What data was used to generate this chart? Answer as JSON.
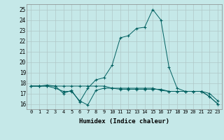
{
  "xlabel": "Humidex (Indice chaleur)",
  "background_color": "#c5e8e8",
  "grid_color": "#b0c8c8",
  "line_color": "#006060",
  "xlim": [
    -0.5,
    23.5
  ],
  "ylim": [
    15.5,
    25.5
  ],
  "xticks": [
    0,
    1,
    2,
    3,
    4,
    5,
    6,
    7,
    8,
    9,
    10,
    11,
    12,
    13,
    14,
    15,
    16,
    17,
    18,
    19,
    20,
    21,
    22,
    23
  ],
  "yticks": [
    16,
    17,
    18,
    19,
    20,
    21,
    22,
    23,
    24,
    25
  ],
  "line1": [
    17.7,
    17.7,
    17.7,
    17.5,
    17.2,
    17.2,
    16.3,
    15.9,
    17.3,
    17.5,
    17.5,
    17.5,
    17.5,
    17.5,
    17.5,
    17.5,
    17.3,
    17.2,
    17.2,
    17.2,
    17.2,
    17.2,
    16.7,
    16.0
  ],
  "line2": [
    17.7,
    17.7,
    17.8,
    17.7,
    17.0,
    17.3,
    16.2,
    17.5,
    18.3,
    18.5,
    19.7,
    22.3,
    22.5,
    23.2,
    23.3,
    25.0,
    24.0,
    19.5,
    17.5,
    17.2,
    17.2,
    17.2,
    16.7,
    16.0
  ],
  "line3": [
    17.7,
    17.7,
    17.7,
    17.7,
    17.7,
    17.7,
    17.7,
    17.7,
    17.7,
    17.7,
    17.5,
    17.4,
    17.4,
    17.4,
    17.4,
    17.4,
    17.4,
    17.2,
    17.2,
    17.2,
    17.2,
    17.2,
    17.0,
    16.3
  ]
}
